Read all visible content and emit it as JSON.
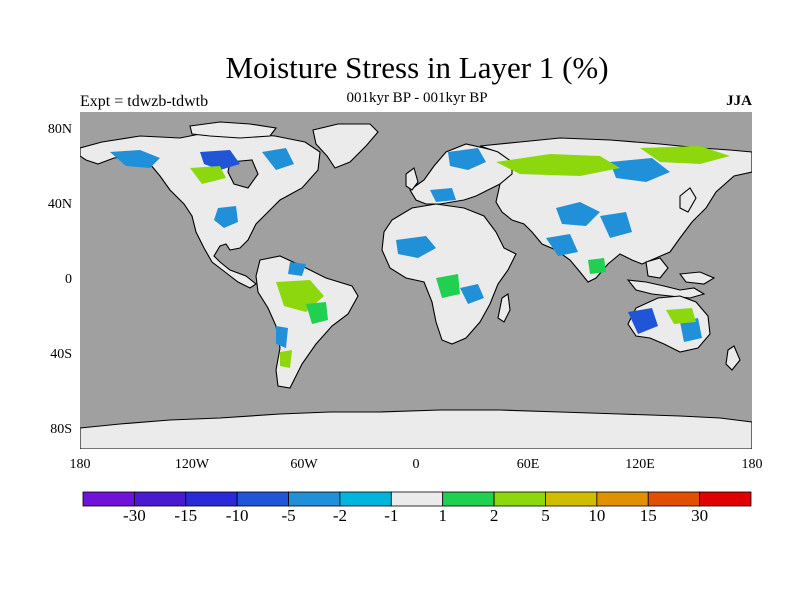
{
  "title": "Moisture Stress in Layer 1 (%)",
  "subtitle": "001kyr BP - 001kyr BP",
  "experiment": "Expt = tdwzb-tdwtb",
  "season": "JJA",
  "map": {
    "lat_ticks": [
      "80N",
      "40N",
      "0",
      "40S",
      "80S"
    ],
    "lon_ticks": [
      "180",
      "120W",
      "60W",
      "0",
      "60E",
      "120E",
      "180"
    ],
    "ocean_color": "#a0a0a0",
    "land_base_color": "#ebebeb"
  },
  "colorbar": {
    "colors": [
      "#7013d8",
      "#4a1ad0",
      "#2a2ad8",
      "#1f55d6",
      "#2090d8",
      "#00b4dc",
      "#ebebeb",
      "#20d050",
      "#8cd80c",
      "#d0bc00",
      "#e09000",
      "#e05000",
      "#e00000"
    ],
    "labels": [
      "-30",
      "-15",
      "-10",
      "-5",
      "-2",
      "-1",
      "1",
      "2",
      "5",
      "10",
      "15",
      "30"
    ]
  }
}
